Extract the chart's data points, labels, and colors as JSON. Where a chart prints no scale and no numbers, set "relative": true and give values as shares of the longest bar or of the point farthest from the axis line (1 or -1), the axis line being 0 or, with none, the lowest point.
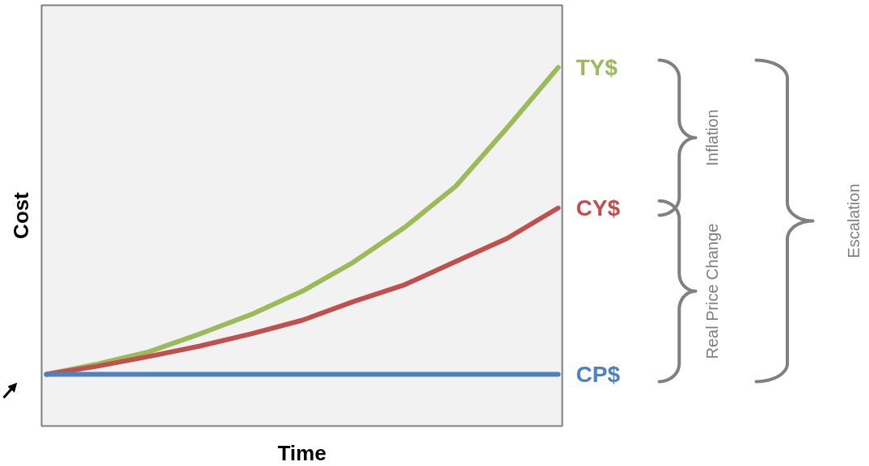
{
  "chart_data": {
    "type": "line",
    "relative": true,
    "xlabel": "Time",
    "ylabel": "Cost",
    "categories": [
      null,
      null,
      null,
      null,
      null,
      null,
      null,
      null,
      null,
      null,
      null
    ],
    "series": [
      {
        "name": "TY$",
        "color": "#9bbb59",
        "values": [
          0.144,
          0.173,
          0.207,
          0.257,
          0.311,
          0.376,
          0.457,
          0.554,
          0.669,
          0.831,
          1
        ]
      },
      {
        "name": "CY$",
        "color": "#c0504d",
        "values": [
          0.144,
          0.167,
          0.194,
          0.223,
          0.257,
          0.295,
          0.347,
          0.394,
          0.459,
          0.523,
          0.608
        ]
      },
      {
        "name": "CP$",
        "color": "#4f81bd",
        "values": [
          0.144,
          0.144,
          0.144,
          0.144,
          0.144,
          0.144,
          0.144,
          0.144,
          0.144,
          0.144,
          0.144
        ]
      }
    ],
    "annotations": [
      "Inflation",
      "Real Price Change",
      "Escalation"
    ]
  }
}
